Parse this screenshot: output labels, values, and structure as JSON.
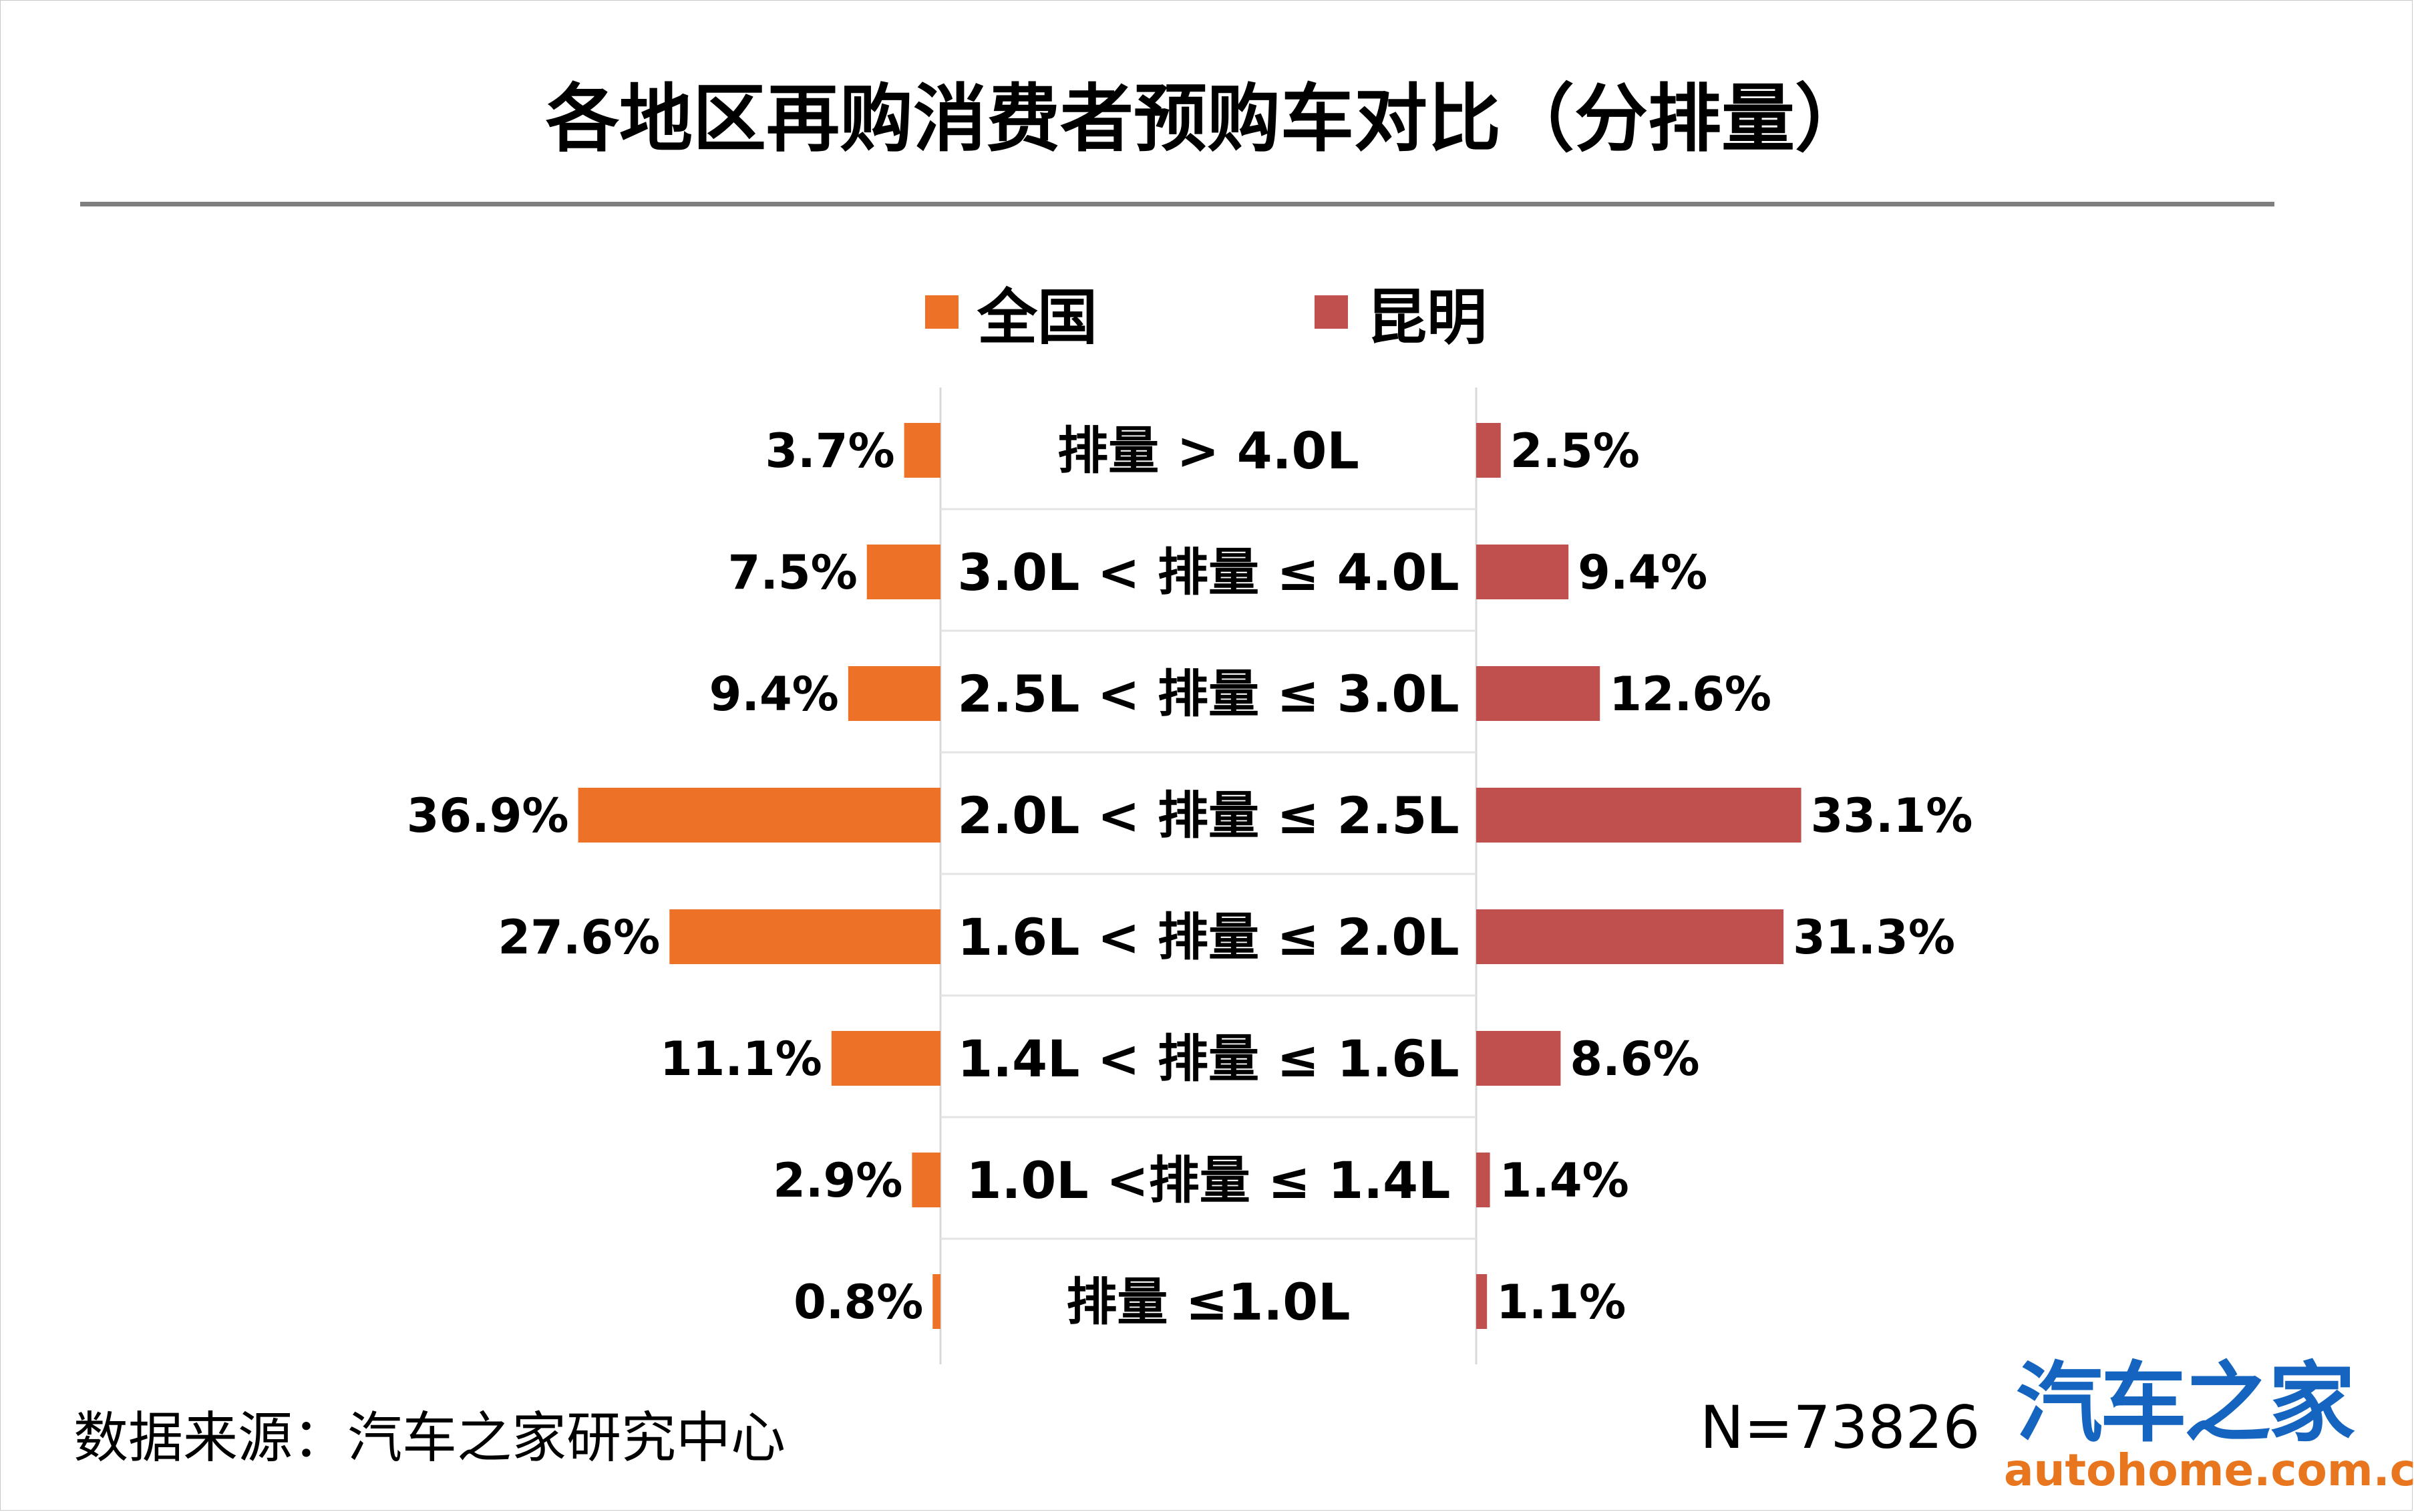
{
  "title": "各地区再购消费者预购车对比（分排量）",
  "legend": [
    {
      "label": "全国",
      "color": "#ed7127"
    },
    {
      "label": "昆明",
      "color": "#c0504d"
    }
  ],
  "footer": {
    "source": "数据来源：汽车之家研究中心",
    "sample": "N=73826"
  },
  "logo": {
    "cn": "汽车之家",
    "en": "autohome.com.cn"
  },
  "chart_data": {
    "type": "bar",
    "orientation": "horizontal-butterfly",
    "categories": [
      "排量 > 4.0L",
      "3.0L < 排量 ≤ 4.0L",
      "2.5L < 排量 ≤ 3.0L",
      "2.0L < 排量 ≤ 2.5L",
      "1.6L < 排量 ≤ 2.0L",
      "1.4L < 排量 ≤ 1.6L",
      "1.0L <排量 ≤ 1.4L",
      "排量 ≤1.0L"
    ],
    "series": [
      {
        "name": "全国",
        "color": "#ed7127",
        "values": [
          3.7,
          7.5,
          9.4,
          36.9,
          27.6,
          11.1,
          2.9,
          0.8
        ],
        "labels": [
          "3.7%",
          "7.5%",
          "9.4%",
          "36.9%",
          "27.6%",
          "11.1%",
          "2.9%",
          "0.8%"
        ]
      },
      {
        "name": "昆明",
        "color": "#c0504d",
        "values": [
          2.5,
          9.4,
          12.6,
          33.1,
          31.3,
          8.6,
          1.4,
          1.1
        ],
        "labels": [
          "2.5%",
          "9.4%",
          "12.6%",
          "33.1%",
          "31.3%",
          "8.6%",
          "1.4%",
          "1.1%"
        ]
      }
    ],
    "unit": "%"
  }
}
